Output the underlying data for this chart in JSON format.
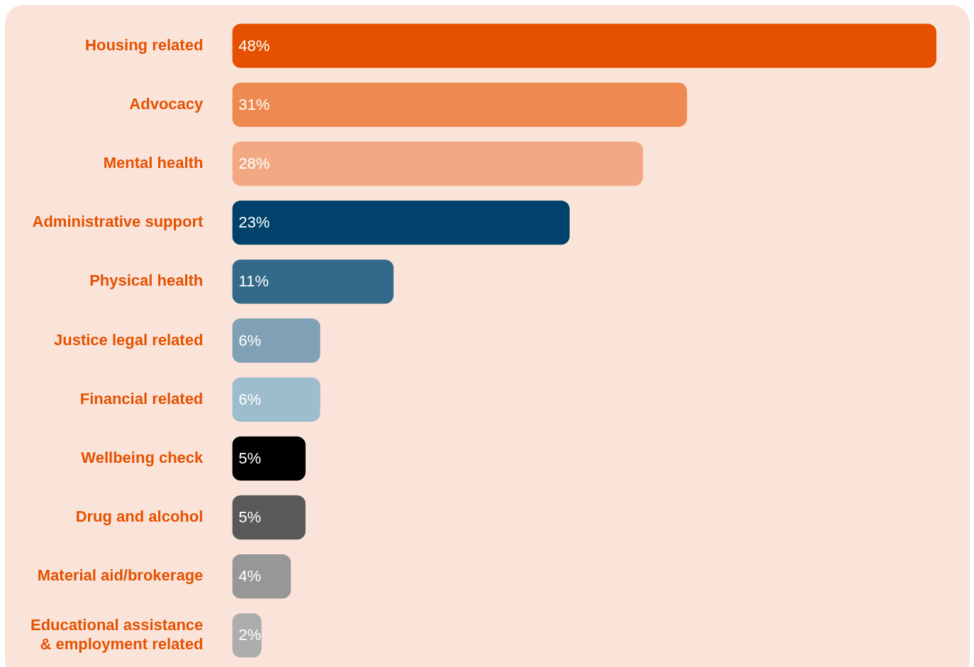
{
  "chart_data": {
    "type": "bar",
    "orientation": "horizontal",
    "categories": [
      "Housing related",
      "Advocacy",
      "Mental health",
      "Administrative support",
      "Physical health",
      "Justice legal related",
      "Financial related",
      "Wellbeing check",
      "Drug and alcohol",
      "Material aid/brokerage",
      "Educational assistance & employment related"
    ],
    "values": [
      48,
      31,
      28,
      23,
      11,
      6,
      6,
      5,
      5,
      4,
      2
    ],
    "value_labels": [
      "48%",
      "31%",
      "28%",
      "23%",
      "11%",
      "6%",
      "6%",
      "5%",
      "5%",
      "4%",
      "2%"
    ],
    "colors": [
      "#e55100",
      "#ee8a50",
      "#f2a983",
      "#00426b",
      "#336a89",
      "#7fa0b5",
      "#9dbccc",
      "#000000",
      "#595959",
      "#979797",
      "#adadad"
    ],
    "legend": false
  }
}
